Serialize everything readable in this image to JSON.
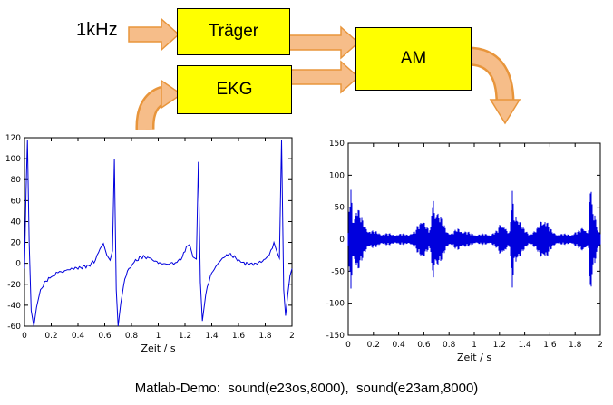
{
  "diagram": {
    "input_label": "1kHz",
    "boxes": [
      {
        "label": "Träger"
      },
      {
        "label": "EKG"
      },
      {
        "label": "AM"
      }
    ]
  },
  "caption": "Matlab-Demo:  sound(e23os,8000),  sound(e23am,8000)",
  "colors": {
    "box_fill": "#ffff00",
    "box_border": "#000000",
    "arrow_fill": "#f6bd89",
    "arrow_border": "#e8953b",
    "trace": "#0000dd",
    "axis": "#000000"
  },
  "chart_data": [
    {
      "type": "line",
      "name": "ekg-signal",
      "xlabel": "Zeit / s",
      "ylabel": "",
      "xlim": [
        0,
        2
      ],
      "ylim": [
        -60,
        120
      ],
      "xticks": [
        0,
        0.2,
        0.4,
        0.6,
        0.8,
        1,
        1.2,
        1.4,
        1.6,
        1.8,
        2
      ],
      "yticks": [
        -60,
        -40,
        -20,
        0,
        20,
        40,
        60,
        80,
        100,
        120
      ],
      "grid": false,
      "line_color": "#0000dd",
      "points": [
        [
          0.0,
          -5
        ],
        [
          0.012,
          70
        ],
        [
          0.022,
          118
        ],
        [
          0.035,
          20
        ],
        [
          0.05,
          -45
        ],
        [
          0.07,
          -60
        ],
        [
          0.09,
          -42
        ],
        [
          0.12,
          -25
        ],
        [
          0.16,
          -17
        ],
        [
          0.2,
          -13
        ],
        [
          0.25,
          -9
        ],
        [
          0.3,
          -7
        ],
        [
          0.36,
          -5
        ],
        [
          0.42,
          -4
        ],
        [
          0.48,
          -2
        ],
        [
          0.53,
          3
        ],
        [
          0.565,
          14
        ],
        [
          0.59,
          19
        ],
        [
          0.615,
          8
        ],
        [
          0.64,
          3
        ],
        [
          0.658,
          12
        ],
        [
          0.672,
          100
        ],
        [
          0.686,
          -25
        ],
        [
          0.7,
          -60
        ],
        [
          0.72,
          -38
        ],
        [
          0.75,
          -15
        ],
        [
          0.78,
          -5
        ],
        [
          0.82,
          1
        ],
        [
          0.87,
          6
        ],
        [
          0.92,
          6
        ],
        [
          0.97,
          2
        ],
        [
          1.02,
          0
        ],
        [
          1.08,
          -1
        ],
        [
          1.14,
          1
        ],
        [
          1.18,
          6
        ],
        [
          1.21,
          16
        ],
        [
          1.235,
          18
        ],
        [
          1.26,
          6
        ],
        [
          1.285,
          4
        ],
        [
          1.3,
          97
        ],
        [
          1.315,
          -18
        ],
        [
          1.33,
          -55
        ],
        [
          1.355,
          -30
        ],
        [
          1.39,
          -12
        ],
        [
          1.43,
          -3
        ],
        [
          1.48,
          5
        ],
        [
          1.53,
          9
        ],
        [
          1.58,
          5
        ],
        [
          1.63,
          1
        ],
        [
          1.68,
          -1
        ],
        [
          1.73,
          0
        ],
        [
          1.78,
          2
        ],
        [
          1.83,
          8
        ],
        [
          1.865,
          20
        ],
        [
          1.89,
          10
        ],
        [
          1.906,
          5
        ],
        [
          1.922,
          118
        ],
        [
          1.938,
          -25
        ],
        [
          1.952,
          -50
        ],
        [
          1.97,
          -28
        ],
        [
          1.985,
          -12
        ],
        [
          2.0,
          -5
        ]
      ]
    },
    {
      "type": "line",
      "name": "am-signal",
      "xlabel": "Zeit / s",
      "ylabel": "",
      "xlim": [
        0,
        2
      ],
      "ylim": [
        -150,
        150
      ],
      "xticks": [
        0,
        0.2,
        0.4,
        0.6,
        0.8,
        1,
        1.2,
        1.4,
        1.6,
        1.8,
        2
      ],
      "yticks": [
        -150,
        -100,
        -50,
        0,
        50,
        100,
        150
      ],
      "grid": false,
      "line_color": "#0000dd",
      "envelope": [
        [
          0.0,
          10
        ],
        [
          0.012,
          70
        ],
        [
          0.022,
          105
        ],
        [
          0.035,
          35
        ],
        [
          0.05,
          55
        ],
        [
          0.07,
          65
        ],
        [
          0.09,
          45
        ],
        [
          0.12,
          28
        ],
        [
          0.16,
          18
        ],
        [
          0.2,
          14
        ],
        [
          0.25,
          11
        ],
        [
          0.3,
          10
        ],
        [
          0.36,
          9
        ],
        [
          0.42,
          9
        ],
        [
          0.48,
          10
        ],
        [
          0.53,
          13
        ],
        [
          0.565,
          30
        ],
        [
          0.59,
          45
        ],
        [
          0.615,
          25
        ],
        [
          0.64,
          15
        ],
        [
          0.658,
          22
        ],
        [
          0.672,
          100
        ],
        [
          0.686,
          50
        ],
        [
          0.7,
          62
        ],
        [
          0.72,
          45
        ],
        [
          0.75,
          28
        ],
        [
          0.78,
          16
        ],
        [
          0.82,
          11
        ],
        [
          0.87,
          18
        ],
        [
          0.92,
          16
        ],
        [
          0.97,
          10
        ],
        [
          1.02,
          9
        ],
        [
          1.08,
          9
        ],
        [
          1.14,
          10
        ],
        [
          1.18,
          14
        ],
        [
          1.21,
          30
        ],
        [
          1.235,
          32
        ],
        [
          1.26,
          14
        ],
        [
          1.285,
          12
        ],
        [
          1.3,
          105
        ],
        [
          1.315,
          38
        ],
        [
          1.33,
          58
        ],
        [
          1.355,
          36
        ],
        [
          1.39,
          18
        ],
        [
          1.43,
          11
        ],
        [
          1.48,
          14
        ],
        [
          1.5,
          18
        ],
        [
          1.53,
          35
        ],
        [
          1.56,
          42
        ],
        [
          1.6,
          18
        ],
        [
          1.63,
          12
        ],
        [
          1.68,
          9
        ],
        [
          1.73,
          9
        ],
        [
          1.78,
          10
        ],
        [
          1.83,
          14
        ],
        [
          1.865,
          26
        ],
        [
          1.89,
          16
        ],
        [
          1.906,
          12
        ],
        [
          1.922,
          120
        ],
        [
          1.938,
          42
        ],
        [
          1.952,
          55
        ],
        [
          1.97,
          33
        ],
        [
          1.985,
          18
        ],
        [
          2.0,
          12
        ]
      ]
    }
  ]
}
